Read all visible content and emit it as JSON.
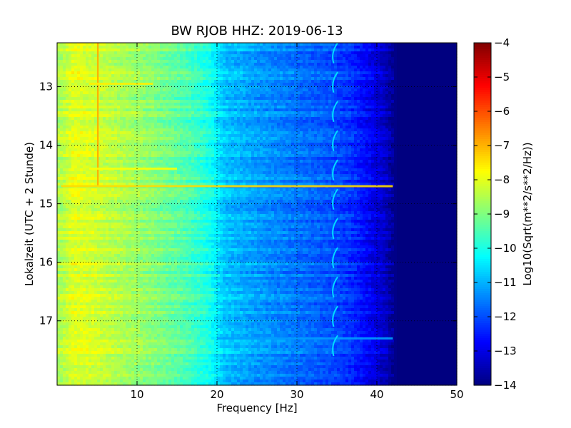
{
  "chart_data": {
    "type": "heatmap",
    "title": "BW RJOB HHZ: 2019-06-13",
    "xlabel": "Frequency [Hz]",
    "ylabel": "Lokalzeit (UTC + 2 Stunde)",
    "xlim": [
      0,
      50
    ],
    "ylim": [
      12.25,
      18.1
    ],
    "y_inverted": true,
    "x_ticks": [
      10,
      20,
      30,
      40,
      50
    ],
    "x_tick_labels": [
      "10",
      "20",
      "30",
      "40",
      "50"
    ],
    "y_ticks": [
      13,
      14,
      15,
      16,
      17
    ],
    "y_tick_labels": [
      "13",
      "14",
      "15",
      "16",
      "17"
    ],
    "grid": true,
    "colormap": "jet",
    "colorbar": {
      "label": "Log10(Sqrt(m**2/s**2/Hz))",
      "range": [
        -14,
        -4
      ],
      "ticks": [
        -4,
        -5,
        -6,
        -7,
        -8,
        -9,
        -10,
        -11,
        -12,
        -13,
        -14
      ],
      "tick_labels": [
        "−4",
        "−5",
        "−6",
        "−7",
        "−8",
        "−9",
        "−10",
        "−11",
        "−12",
        "−13",
        "−14"
      ]
    },
    "features": {
      "background_profile": [
        {
          "freq": 0.5,
          "value": -8.5
        },
        {
          "freq": 2,
          "value": -8.0
        },
        {
          "freq": 4,
          "value": -8.1
        },
        {
          "freq": 8,
          "value": -8.5
        },
        {
          "freq": 12,
          "value": -8.9
        },
        {
          "freq": 16,
          "value": -9.4
        },
        {
          "freq": 19,
          "value": -10.0
        },
        {
          "freq": 21,
          "value": -10.8
        },
        {
          "freq": 25,
          "value": -11.2
        },
        {
          "freq": 30,
          "value": -11.6
        },
        {
          "freq": 34,
          "value": -11.9
        },
        {
          "freq": 37,
          "value": -12.3
        },
        {
          "freq": 39,
          "value": -12.8
        },
        {
          "freq": 41,
          "value": -13.3
        },
        {
          "freq": 42.5,
          "value": -14.0
        },
        {
          "freq": 50,
          "value": -14.0
        }
      ],
      "vertical_line": {
        "freq": 5.1,
        "time_start": 12.25,
        "time_end": 14.7,
        "value": -7.0
      },
      "horizontal_lines": [
        {
          "time": 12.95,
          "freq_start": 4,
          "freq_end": 12,
          "value": -7.6
        },
        {
          "time": 14.4,
          "freq_start": 4,
          "freq_end": 15,
          "value": -7.8
        },
        {
          "time": 14.7,
          "freq_start": 0.5,
          "freq_end": 42,
          "value": -7.4
        },
        {
          "time": 17.3,
          "freq_start": 20,
          "freq_end": 42,
          "value": -11.2
        }
      ],
      "wiggle_times": [
        12.25,
        12.75,
        13.25,
        13.75,
        14.25,
        14.75,
        15.25,
        15.75,
        16.25,
        16.75,
        17.25
      ]
    }
  }
}
